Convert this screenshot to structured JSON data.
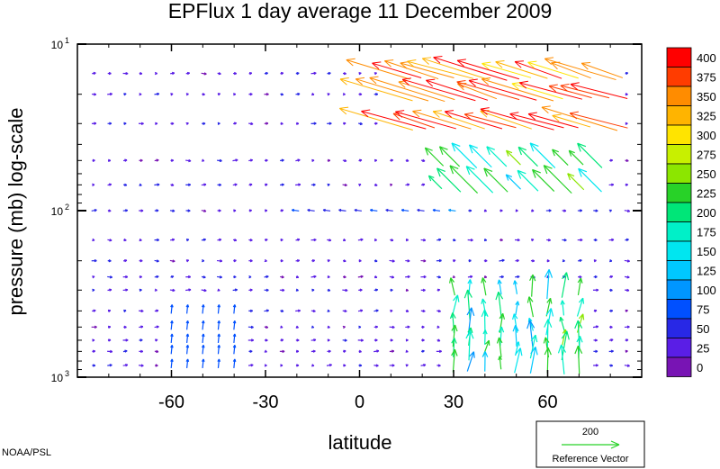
{
  "chart_data": {
    "type": "vector-field",
    "title": "EPFlux  1 day average  11 December  2009",
    "xlabel": "latitude",
    "ylabel": "pressure (mb)  log-scale",
    "xlim": [
      -90,
      90
    ],
    "ylim": [
      1000,
      10
    ],
    "yscale": "log",
    "x_ticks": [
      "-60",
      "-30",
      "0",
      "30",
      "60"
    ],
    "x_tick_values": [
      -60,
      -30,
      0,
      30,
      60
    ],
    "y_ticks": [
      {
        "base": "10",
        "exp": "1",
        "value": 10
      },
      {
        "base": "10",
        "exp": "2",
        "value": 100
      },
      {
        "base": "10",
        "exp": "3",
        "value": 1000
      }
    ],
    "colorbar": {
      "labels": [
        "400",
        "375",
        "350",
        "325",
        "300",
        "275",
        "250",
        "225",
        "200",
        "175",
        "150",
        "125",
        "100",
        "75",
        "50",
        "25",
        "0"
      ],
      "colors": [
        "#ff0000",
        "#ff3c00",
        "#ff8c00",
        "#ffb400",
        "#ffe400",
        "#c8f000",
        "#8ce600",
        "#28d228",
        "#00e678",
        "#00f0c8",
        "#00e6f0",
        "#00c8ff",
        "#0096ff",
        "#0050ff",
        "#2828e6",
        "#5a1ee6",
        "#7814b4"
      ]
    },
    "reference_vector": {
      "value": "200",
      "label": "Reference Vector"
    },
    "credit": "NOAA/PSL",
    "vectors_note": "Strong magnitude (300-400+) westward/equatorward vectors at 10-30 mb, 10N-80N; weaker 100-250 vectors 30-80 mb and 300-1000 mb near 35N-70N; elsewhere magnitude near 0-50."
  }
}
